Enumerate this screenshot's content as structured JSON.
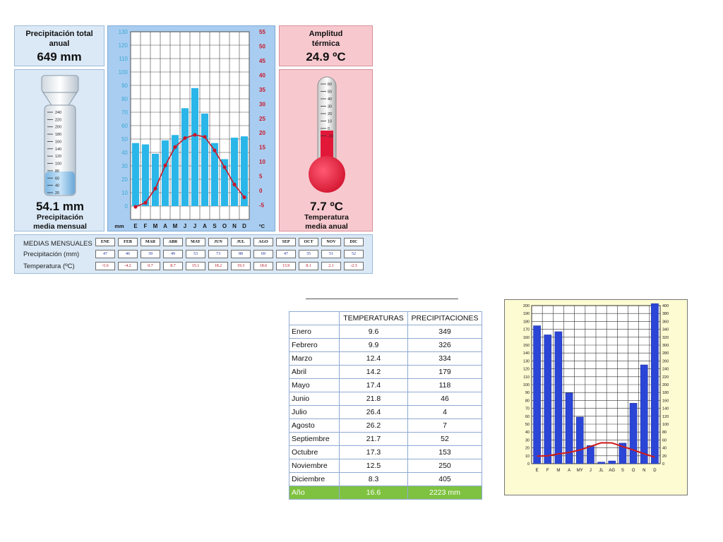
{
  "climograph_1": {
    "precip_total": {
      "title_line1": "Precipitación total",
      "title_line2": "anual",
      "value": "649 mm"
    },
    "precip_mean": {
      "value": "54.1 mm",
      "label_line1": "Precipitación",
      "label_line2": "media mensual"
    },
    "amplitude": {
      "title_line1": "Amplitud",
      "title_line2": "térmica",
      "value": "24.9 ºC"
    },
    "temp_mean": {
      "value": "7.7 ºC",
      "label_line1": "Temperatura",
      "label_line2": "media anual"
    },
    "cylinder_ticks": [
      "240",
      "220",
      "200",
      "180",
      "160",
      "140",
      "120",
      "100",
      "80",
      "60",
      "40",
      "20"
    ],
    "thermometer_ticks": [
      "60",
      "50",
      "40",
      "30",
      "20",
      "10",
      "0",
      "-10"
    ],
    "colors": {
      "bars": "#2ab6e8",
      "line": "#c8182a",
      "precip_axis": "#3aa9d8",
      "temp_axis": "#c8182a"
    },
    "monthly": {
      "row_label": "MEDIAS MENSUALES",
      "precip_label": "Precipitación (mm)",
      "temp_label": "Temperatura (ºC)",
      "months": [
        "ENE",
        "FEB",
        "MAR",
        "ABR",
        "MAY",
        "JUN",
        "JUL",
        "AGO",
        "SEP",
        "OCT",
        "NOV",
        "DIC"
      ],
      "precip": [
        "47",
        "46",
        "39",
        "49",
        "53",
        "73",
        "88",
        "69",
        "47",
        "35",
        "51",
        "52"
      ],
      "temp": [
        "-5.6",
        "-4.2",
        "0.7",
        "8.7",
        "15.1",
        "18.2",
        "19.3",
        "18.6",
        "13.9",
        "8.1",
        "2.1",
        "-2.3"
      ]
    }
  },
  "table": {
    "headers": [
      "",
      "TEMPERATURAS",
      "PRECIPITACIONES"
    ],
    "rows": [
      [
        "Enero",
        "9.6",
        "349"
      ],
      [
        "Febrero",
        "9.9",
        "326"
      ],
      [
        "Marzo",
        "12.4",
        "334"
      ],
      [
        "Abril",
        "14.2",
        "179"
      ],
      [
        "Mayo",
        "17.4",
        "118"
      ],
      [
        "Junio",
        "21.8",
        "46"
      ],
      [
        "Julio",
        "26.4",
        "4"
      ],
      [
        "Agosto",
        "26.2",
        "7"
      ],
      [
        "Septiembre",
        "21.7",
        "52"
      ],
      [
        "Octubre",
        "17.3",
        "153"
      ],
      [
        "Noviembre",
        "12.5",
        "250"
      ],
      [
        "Diciembre",
        "8.3",
        "405"
      ]
    ],
    "total": [
      "Año",
      "16.6",
      "2223 mm"
    ]
  },
  "chart_data": [
    {
      "type": "bar",
      "categories": [
        "E",
        "F",
        "M",
        "A",
        "M",
        "J",
        "J",
        "A",
        "S",
        "O",
        "N",
        "D"
      ],
      "series": [
        {
          "values": [
            47,
            46,
            39,
            49,
            53,
            73,
            88,
            69,
            47,
            35,
            51,
            52
          ]
        },
        {
          "values": [
            -5.6,
            -4.2,
            0.7,
            8.7,
            15.1,
            18.2,
            19.3,
            18.6,
            13.9,
            8.1,
            2.1,
            -2.3
          ]
        }
      ],
      "left_axis": {
        "unit": "mm",
        "ylim": [
          -10,
          130
        ],
        "ticks": [
          0,
          10,
          20,
          30,
          40,
          50,
          60,
          70,
          80,
          90,
          100,
          110,
          120,
          130
        ]
      },
      "right_axis": {
        "unit": "ºC",
        "ylim": [
          -10,
          55
        ],
        "ticks": [
          -5,
          0,
          5,
          10,
          15,
          20,
          25,
          30,
          35,
          40,
          45,
          50,
          55
        ]
      },
      "grid": true
    },
    {
      "type": "bar",
      "categories": [
        "E",
        "F",
        "M",
        "A",
        "MY",
        "J",
        "JL",
        "AG",
        "S",
        "O",
        "N",
        "D"
      ],
      "series": [
        {
          "values": [
            349,
            326,
            334,
            179,
            118,
            46,
            4,
            7,
            52,
            153,
            250,
            405
          ]
        },
        {
          "values": [
            9.6,
            9.9,
            12.4,
            14.2,
            17.4,
            21.8,
            26.4,
            26.2,
            21.7,
            17.3,
            12.5,
            8.3
          ]
        }
      ],
      "left_axis": {
        "ylim": [
          0,
          200
        ],
        "ticks": [
          0,
          10,
          20,
          30,
          40,
          50,
          60,
          70,
          80,
          90,
          100,
          110,
          120,
          130,
          140,
          150,
          160,
          170,
          180,
          190,
          200
        ]
      },
      "right_axis": {
        "ylim": [
          0,
          400
        ],
        "ticks": [
          0,
          20,
          40,
          60,
          80,
          100,
          120,
          140,
          160,
          180,
          200,
          220,
          240,
          260,
          280,
          300,
          320,
          340,
          360,
          380,
          400
        ]
      },
      "colors": {
        "bars": "#2b46d6",
        "line": "#d01a1a",
        "background": "#fdfbd2"
      },
      "grid": true
    }
  ]
}
